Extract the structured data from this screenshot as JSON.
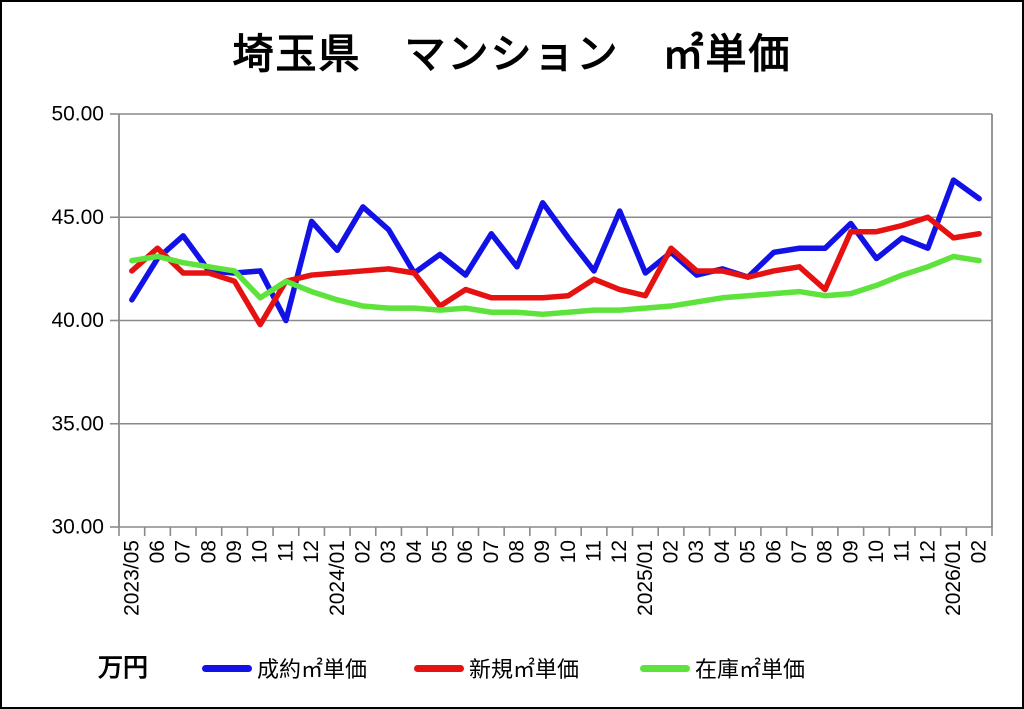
{
  "title": "埼玉県　マンション　㎡単価",
  "unit_label": "万円",
  "chart_data": {
    "type": "line",
    "title": "埼玉県　マンション　㎡単価",
    "ylabel": "万円",
    "xlabel": "",
    "ylim": [
      30,
      50
    ],
    "yticks": [
      50,
      45,
      40,
      35,
      30
    ],
    "ytick_labels": [
      "50.00",
      "45.00",
      "40.00",
      "35.00",
      "30.00"
    ],
    "grid": true,
    "grid_color": "#8a8a8a",
    "axis_color": "#8a8a8a",
    "legend_position": "bottom",
    "categories": [
      "2023/05",
      "06",
      "07",
      "08",
      "09",
      "10",
      "11",
      "12",
      "2024/01",
      "02",
      "03",
      "04",
      "05",
      "06",
      "07",
      "08",
      "09",
      "10",
      "11",
      "12",
      "2025/01",
      "02",
      "03",
      "04",
      "05",
      "06",
      "07",
      "08",
      "09",
      "10",
      "11",
      "12",
      "2026/01",
      "02"
    ],
    "series": [
      {
        "name": "成約㎡単価",
        "color": "#1212e6",
        "values": [
          41.0,
          43.0,
          44.1,
          42.4,
          42.3,
          42.4,
          40.0,
          44.8,
          43.4,
          45.5,
          44.4,
          42.3,
          43.2,
          42.2,
          44.2,
          42.6,
          45.7,
          44.0,
          42.4,
          45.3,
          42.3,
          43.3,
          42.2,
          42.5,
          42.1,
          43.3,
          43.5,
          43.5,
          44.7,
          43.0,
          44.0,
          43.5,
          46.8,
          45.9
        ]
      },
      {
        "name": "新規㎡単価",
        "color": "#e61212",
        "values": [
          42.4,
          43.5,
          42.3,
          42.3,
          41.9,
          39.8,
          41.9,
          42.2,
          42.3,
          42.4,
          42.5,
          42.3,
          40.7,
          41.5,
          41.1,
          41.1,
          41.1,
          41.2,
          42.0,
          41.5,
          41.2,
          43.5,
          42.4,
          42.4,
          42.1,
          42.4,
          42.6,
          41.5,
          44.3,
          44.3,
          44.6,
          45.0,
          44.0,
          44.2
        ]
      },
      {
        "name": "在庫㎡単価",
        "color": "#5de33c",
        "values": [
          42.9,
          43.1,
          42.8,
          42.6,
          42.4,
          41.1,
          41.9,
          41.4,
          41.0,
          40.7,
          40.6,
          40.6,
          40.5,
          40.6,
          40.4,
          40.4,
          40.3,
          40.4,
          40.5,
          40.5,
          40.6,
          40.7,
          40.9,
          41.1,
          41.2,
          41.3,
          41.4,
          41.2,
          41.3,
          41.7,
          42.2,
          42.6,
          43.1,
          42.9
        ]
      }
    ]
  }
}
